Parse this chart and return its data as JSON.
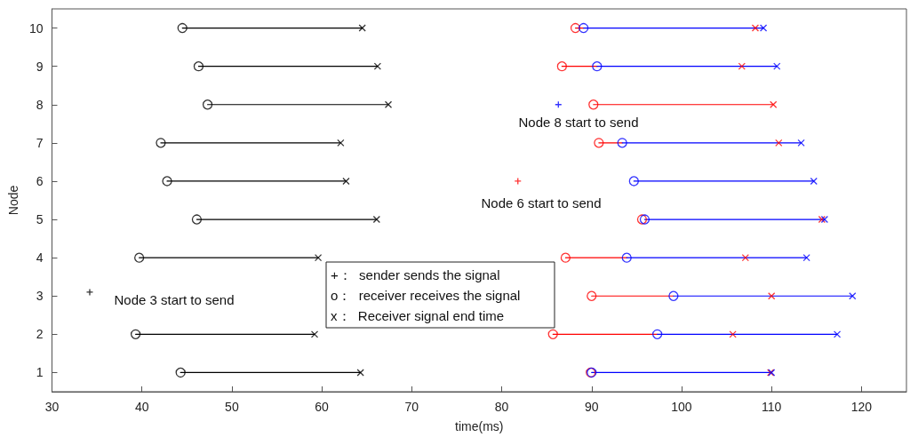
{
  "chart_data": {
    "type": "scatter",
    "xlabel": "time(ms)",
    "ylabel": "Node",
    "xlim": [
      30,
      125
    ],
    "xticks": [
      30,
      40,
      50,
      60,
      70,
      80,
      90,
      100,
      110,
      120
    ],
    "ylim": [
      0.5,
      10.5
    ],
    "yticks": [
      1,
      2,
      3,
      4,
      5,
      6,
      7,
      8,
      9,
      10
    ],
    "grid": false,
    "series": [
      {
        "type": "line",
        "color": "#000000",
        "marker": "none",
        "x": [
          44.5,
          64.5,
          null,
          46.3,
          66.2,
          null,
          47.3,
          67.4,
          null,
          42.1,
          62.1,
          null,
          42.8,
          62.7,
          null,
          46.1,
          66.1,
          null,
          39.7,
          59.6,
          null,
          39.3,
          59.2,
          null,
          44.3,
          64.3
        ],
        "values": [
          10,
          10,
          null,
          9,
          9,
          null,
          8,
          8,
          null,
          7,
          7,
          null,
          6,
          6,
          null,
          5,
          5,
          null,
          4,
          4,
          null,
          2,
          2,
          null,
          1,
          1
        ]
      },
      {
        "color": "#000000",
        "marker": "circle",
        "x": [
          44.5,
          46.3,
          47.3,
          42.1,
          42.8,
          46.1,
          39.7,
          39.3,
          44.3
        ],
        "values": [
          10,
          9,
          8,
          7,
          6,
          5,
          4,
          2,
          1
        ]
      },
      {
        "type": "scatter",
        "color": "#000000",
        "marker": "x",
        "x": [
          64.5,
          66.2,
          67.4,
          62.1,
          62.7,
          66.1,
          59.6,
          59.2,
          64.3
        ],
        "values": [
          10,
          9,
          8,
          7,
          6,
          5,
          4,
          2,
          1
        ]
      },
      {
        "type": "scatter",
        "color": "#000000",
        "marker": "cross",
        "x": [
          34.2
        ],
        "values": [
          3.1
        ]
      },
      {
        "type": "line",
        "color": "#ff0000",
        "marker": "none",
        "x": [
          88.2,
          89.1,
          null,
          86.7,
          90.6,
          null,
          90.2,
          110.2,
          null,
          90.8,
          93.4,
          null,
          87.1,
          93.9,
          null,
          90.0,
          99.1,
          null,
          85.7,
          97.3
        ],
        "values": [
          10,
          10,
          null,
          9,
          9,
          null,
          8,
          8,
          null,
          7,
          7,
          null,
          4,
          4,
          null,
          3,
          3,
          null,
          2,
          2
        ]
      },
      {
        "type": "scatter",
        "color": "#ff0000",
        "marker": "circle",
        "x": [
          88.2,
          86.7,
          90.2,
          90.8,
          95.6,
          87.1,
          90.0,
          85.7,
          89.9
        ],
        "values": [
          10,
          9,
          8,
          7,
          5,
          4,
          3,
          2,
          1
        ]
      },
      {
        "type": "scatter",
        "color": "#ff0000",
        "marker": "x",
        "x": [
          108.2,
          106.7,
          110.2,
          110.8,
          115.6,
          107.1,
          110.0,
          105.7,
          109.9
        ],
        "values": [
          10,
          9,
          8,
          7,
          5,
          4,
          3,
          2,
          1
        ]
      },
      {
        "type": "scatter",
        "color": "#ff0000",
        "marker": "cross",
        "x": [
          81.8
        ],
        "values": [
          6
        ]
      },
      {
        "type": "line",
        "color": "#0000ff",
        "marker": "none",
        "x": [
          89.1,
          109.1,
          null,
          90.6,
          110.6,
          null,
          93.4,
          113.3,
          null,
          94.7,
          114.7,
          null,
          95.9,
          115.9,
          null,
          93.9,
          113.9,
          null,
          99.1,
          119.0,
          null,
          97.3,
          117.3,
          null,
          90.0,
          110.0
        ],
        "values": [
          10,
          10,
          null,
          9,
          9,
          null,
          7,
          7,
          null,
          6,
          6,
          null,
          5,
          5,
          null,
          4,
          4,
          null,
          3,
          3,
          null,
          2,
          2,
          null,
          1,
          1
        ]
      },
      {
        "type": "scatter",
        "color": "#0000ff",
        "marker": "circle",
        "x": [
          89.1,
          90.6,
          93.4,
          94.7,
          95.9,
          93.9,
          99.1,
          97.3,
          90.0
        ],
        "values": [
          10,
          9,
          7,
          6,
          5,
          4,
          3,
          2,
          1
        ]
      },
      {
        "type": "scatter",
        "color": "#0000ff",
        "marker": "x",
        "x": [
          109.1,
          110.6,
          113.3,
          114.7,
          115.9,
          113.9,
          119.0,
          117.3,
          110.0
        ],
        "values": [
          10,
          9,
          7,
          6,
          5,
          4,
          3,
          2,
          1
        ]
      },
      {
        "type": "scatter",
        "color": "#0000ff",
        "marker": "cross",
        "x": [
          86.3
        ],
        "values": [
          8
        ]
      }
    ],
    "annotations": [
      "Node 8 start to send",
      "Node 6 start to send",
      "Node 3 start to send",
      "+：  sender sends the signal",
      "o：  receiver receives the signal",
      "x：  Receiver signal end time"
    ]
  }
}
